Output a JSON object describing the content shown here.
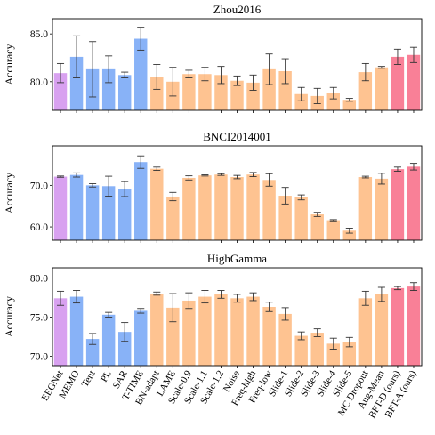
{
  "chart_data": [
    {
      "type": "bar",
      "title": "Zhou2016",
      "ylabel": "Accuracy",
      "ylim": [
        77.0,
        86.6
      ],
      "yticks": [
        80.0,
        85.0
      ],
      "categories": [
        "EEGNet",
        "MEMO",
        "Tent",
        "PL",
        "SAR",
        "T-TIME",
        "BN-adapt",
        "LAME",
        "Scale-0.9",
        "Scale-1.1",
        "Scale-1.2",
        "Noise",
        "Freq-high",
        "Freq-low",
        "Slide-1",
        "Slide-2",
        "Slide-3",
        "Slide-4",
        "Slide-5",
        "MC Dropout",
        "Aug-Mean",
        "BFT-D (ours)",
        "BFT-A (ours)"
      ],
      "groups": [
        "baseline",
        "tta",
        "tta",
        "tta",
        "tta",
        "tta",
        "aug",
        "aug",
        "aug",
        "aug",
        "aug",
        "aug",
        "aug",
        "aug",
        "aug",
        "aug",
        "aug",
        "aug",
        "aug",
        "aug",
        "aug",
        "ours",
        "ours"
      ],
      "values": [
        80.9,
        82.6,
        81.3,
        81.3,
        80.7,
        84.5,
        80.5,
        80.0,
        80.8,
        80.8,
        80.7,
        80.1,
        79.9,
        81.3,
        81.1,
        78.7,
        78.5,
        78.8,
        78.1,
        81.0,
        81.5,
        82.6,
        82.8
      ],
      "errors": [
        1.0,
        2.2,
        2.9,
        1.4,
        0.3,
        1.2,
        1.3,
        1.5,
        0.4,
        0.7,
        0.9,
        0.5,
        0.8,
        1.6,
        1.3,
        0.7,
        0.8,
        0.6,
        0.15,
        0.9,
        0.1,
        0.8,
        0.8
      ]
    },
    {
      "type": "bar",
      "title": "BNCI2014001",
      "ylabel": "Accuracy",
      "ylim": [
        56.8,
        79.5
      ],
      "yticks": [
        60.0,
        70.0
      ],
      "categories": [
        "EEGNet",
        "MEMO",
        "Tent",
        "PL",
        "SAR",
        "T-TIME",
        "BN-adapt",
        "LAME",
        "Scale-0.9",
        "Scale-1.1",
        "Scale-1.2",
        "Noise",
        "Freq-high",
        "Freq-low",
        "Slide-1",
        "Slide-2",
        "Slide-3",
        "Slide-4",
        "Slide-5",
        "MC Dropout",
        "Aug-Mean",
        "BFT-D (ours)",
        "BFT-A (ours)"
      ],
      "groups": [
        "baseline",
        "tta",
        "tta",
        "tta",
        "tta",
        "tta",
        "aug",
        "aug",
        "aug",
        "aug",
        "aug",
        "aug",
        "aug",
        "aug",
        "aug",
        "aug",
        "aug",
        "aug",
        "aug",
        "aug",
        "aug",
        "ours",
        "ours"
      ],
      "values": [
        72.1,
        72.5,
        70.0,
        69.8,
        69.1,
        75.6,
        74.0,
        67.3,
        71.8,
        72.4,
        72.6,
        72.0,
        72.6,
        71.3,
        67.5,
        67.1,
        63.0,
        61.6,
        59.1,
        72.0,
        71.6,
        73.9,
        74.5
      ],
      "errors": [
        0.15,
        0.5,
        0.4,
        2.4,
        1.8,
        1.5,
        0.4,
        1.0,
        0.5,
        0.15,
        0.2,
        0.4,
        0.5,
        1.5,
        2.0,
        0.6,
        0.5,
        0.15,
        0.6,
        0.2,
        1.3,
        0.5,
        0.8
      ]
    },
    {
      "type": "bar",
      "title": "HighGamma",
      "ylabel": "Accuracy",
      "ylim": [
        68.8,
        81.3
      ],
      "yticks": [
        70.0,
        75.0,
        80.0
      ],
      "categories": [
        "EEGNet",
        "MEMO",
        "Tent",
        "PL",
        "SAR",
        "T-TIME",
        "BN-adapt",
        "LAME",
        "Scale-0.9",
        "Scale-1.1",
        "Scale-1.2",
        "Noise",
        "Freq-high",
        "Freq-low",
        "Slide-1",
        "Slide-2",
        "Slide-3",
        "Slide-4",
        "Slide-5",
        "MC Dropout",
        "Aug-Mean",
        "BFT-D (ours)",
        "BFT-A (ours)"
      ],
      "groups": [
        "baseline",
        "tta",
        "tta",
        "tta",
        "tta",
        "tta",
        "aug",
        "aug",
        "aug",
        "aug",
        "aug",
        "aug",
        "aug",
        "aug",
        "aug",
        "aug",
        "aug",
        "aug",
        "aug",
        "aug",
        "aug",
        "ours",
        "ours"
      ],
      "values": [
        77.4,
        77.6,
        72.2,
        75.3,
        73.1,
        75.8,
        78.0,
        76.2,
        77.1,
        77.6,
        77.9,
        77.4,
        77.6,
        76.3,
        75.4,
        72.6,
        73.0,
        71.6,
        71.8,
        77.4,
        77.9,
        78.7,
        78.9
      ],
      "errors": [
        0.9,
        0.8,
        0.7,
        0.3,
        1.2,
        0.3,
        0.2,
        1.8,
        1.0,
        0.8,
        0.5,
        0.5,
        0.5,
        0.6,
        0.8,
        0.5,
        0.5,
        0.7,
        0.6,
        0.9,
        0.9,
        0.2,
        0.5
      ]
    }
  ],
  "colors": {
    "baseline": "#d8a1f0",
    "tta": "#88b2f7",
    "aug": "#fec391",
    "ours": "#f98097",
    "error": "#333333"
  }
}
